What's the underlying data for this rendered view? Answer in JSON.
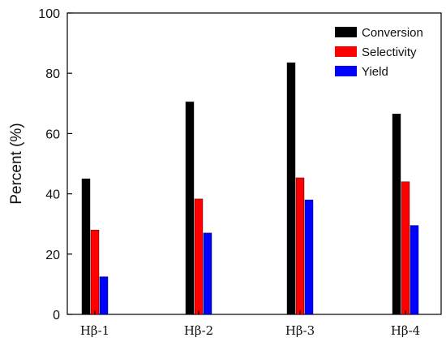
{
  "chart_data": {
    "type": "bar",
    "categories": [
      "Hβ-1",
      "Hβ-2",
      "Hβ-3",
      "Hβ-4"
    ],
    "series": [
      {
        "name": "Conversion",
        "values": [
          45,
          70.5,
          83.5,
          66.5
        ],
        "color": "#000000"
      },
      {
        "name": "Selectivity",
        "values": [
          28,
          38.3,
          45.3,
          44
        ],
        "color": "#ff0000"
      },
      {
        "name": "Yield",
        "values": [
          12.5,
          27,
          38,
          29.5
        ],
        "color": "#0000ff"
      }
    ],
    "ylabel": "Percent (%)",
    "xlabel": "",
    "ylim": [
      0,
      100
    ],
    "yticks": [
      0,
      20,
      40,
      60,
      80,
      100
    ],
    "grid": false,
    "legend_position": "top-right"
  }
}
